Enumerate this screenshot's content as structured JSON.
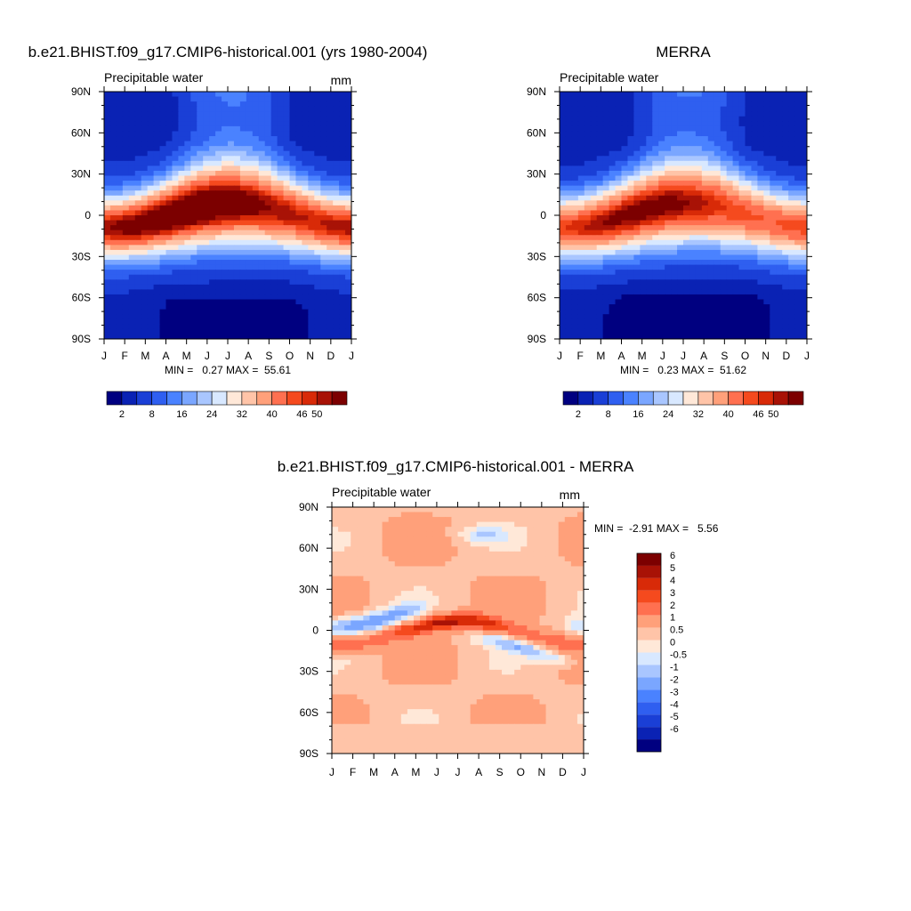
{
  "chart_data": [
    {
      "type": "heatmap",
      "title": "b.e21.BHIST.f09_g17.CMIP6-historical.001 (yrs 1980-2004)",
      "left_label": "Precipitable water",
      "units": "mm",
      "x_ticks": [
        "J",
        "F",
        "M",
        "A",
        "M",
        "J",
        "J",
        "A",
        "S",
        "O",
        "N",
        "D",
        "J"
      ],
      "y_ticks": [
        "90N",
        "60N",
        "30N",
        "0",
        "30S",
        "60S",
        "90S"
      ],
      "y_range": [
        -90,
        90
      ],
      "stats": "MIN =   0.27 MAX =  55.61",
      "field": {
        "base_pole_n": 3,
        "base_pole_s": 1.5,
        "peak": 52,
        "shift": 9,
        "peak_lat_offset": 0
      },
      "colorbar_labels": [
        "2",
        "8",
        "16",
        "24",
        "32",
        "40",
        "46",
        "50"
      ],
      "levels": [
        2,
        4,
        8,
        12,
        16,
        20,
        24,
        28,
        32,
        36,
        40,
        44,
        46,
        48,
        50
      ],
      "colors": [
        "#000080",
        "#0a22b4",
        "#1a3fd6",
        "#2f5ff0",
        "#4a82ff",
        "#7aa6ff",
        "#a9c6ff",
        "#d8e8ff",
        "#ffe8d8",
        "#ffc4a8",
        "#ffa07a",
        "#ff7050",
        "#f54a1e",
        "#d82a08",
        "#a81206",
        "#7c0000"
      ]
    },
    {
      "type": "heatmap",
      "title": "MERRA",
      "left_label": "Precipitable water",
      "units": "",
      "x_ticks": [
        "J",
        "F",
        "M",
        "A",
        "M",
        "J",
        "J",
        "A",
        "S",
        "O",
        "N",
        "D",
        "J"
      ],
      "y_ticks": [
        "90N",
        "60N",
        "30N",
        "0",
        "30S",
        "60S",
        "90S"
      ],
      "y_range": [
        -90,
        90
      ],
      "stats": "MIN =   0.23 MAX =  51.62",
      "field": {
        "base_pole_n": 2.5,
        "base_pole_s": 1.2,
        "peak": 48,
        "shift": 9,
        "peak_lat_offset": 0
      },
      "colorbar_labels": [
        "2",
        "8",
        "16",
        "24",
        "32",
        "40",
        "46",
        "50"
      ],
      "levels": [
        2,
        4,
        8,
        12,
        16,
        20,
        24,
        28,
        32,
        36,
        40,
        44,
        46,
        48,
        50
      ],
      "colors": [
        "#000080",
        "#0a22b4",
        "#1a3fd6",
        "#2f5ff0",
        "#4a82ff",
        "#7aa6ff",
        "#a9c6ff",
        "#d8e8ff",
        "#ffe8d8",
        "#ffc4a8",
        "#ffa07a",
        "#ff7050",
        "#f54a1e",
        "#d82a08",
        "#a81206",
        "#7c0000"
      ]
    },
    {
      "type": "heatmap",
      "title": "b.e21.BHIST.f09_g17.CMIP6-historical.001 - MERRA",
      "left_label": "Precipitable water",
      "units": "mm",
      "x_ticks": [
        "J",
        "F",
        "M",
        "A",
        "M",
        "J",
        "J",
        "A",
        "S",
        "O",
        "N",
        "D",
        "J"
      ],
      "y_ticks": [
        "90N",
        "60N",
        "30N",
        "0",
        "30S",
        "60S",
        "90S"
      ],
      "y_range": [
        -90,
        90
      ],
      "stats": "MIN =  -2.91 MAX =   5.56",
      "colorbar_labels": [
        "6",
        "5",
        "4",
        "3",
        "2",
        "1",
        "0.5",
        "0",
        "-0.5",
        "-1",
        "-2",
        "-3",
        "-4",
        "-5",
        "-6"
      ],
      "levels": [
        -6,
        -5,
        -4,
        -3,
        -2,
        -1,
        -0.5,
        0,
        0.5,
        1,
        2,
        3,
        4,
        5,
        6
      ],
      "colors": [
        "#000080",
        "#0a22b4",
        "#1a3fd6",
        "#2f5ff0",
        "#4a82ff",
        "#7aa6ff",
        "#a9c6ff",
        "#d8e8ff",
        "#ffe8d8",
        "#ffc4a8",
        "#ffa07a",
        "#ff7050",
        "#f54a1e",
        "#d82a08",
        "#a81206",
        "#7c0000"
      ]
    }
  ]
}
